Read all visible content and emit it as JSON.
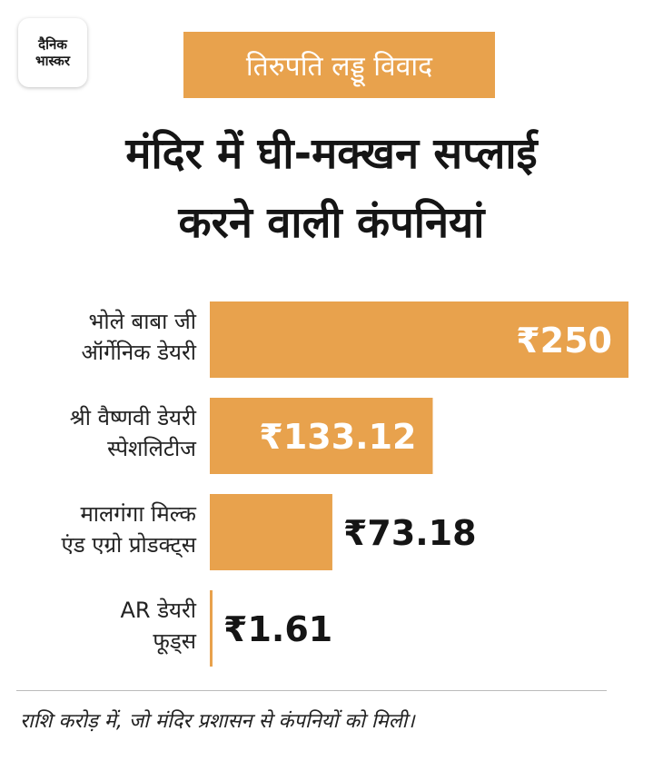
{
  "logo": {
    "line1": "दैनिक",
    "line2": "भास्कर"
  },
  "tag": "तिरुपति लड्डू विवाद",
  "title": {
    "line1": "मंदिर में घी-मक्खन सप्लाई",
    "line2": "करने वाली कंपनियां"
  },
  "colors": {
    "bar": "#E8A24D",
    "value_inside": "#ffffff",
    "value_outside": "#151515"
  },
  "chart_data": {
    "type": "bar",
    "orientation": "horizontal",
    "categories": [
      [
        "भोले बाबा जी",
        "ऑर्गेनिक डेयरी"
      ],
      [
        "श्री वैष्णवी डेयरी",
        "स्पेशलिटीज"
      ],
      [
        "मालगंगा मिल्क",
        "एंड एग्रो प्रोडक्ट्स"
      ],
      [
        "AR डेयरी",
        "फूड्स"
      ]
    ],
    "values": [
      250,
      133.12,
      73.18,
      1.61
    ],
    "value_labels": [
      "₹250",
      "₹133.12",
      "₹73.18",
      "₹1.61"
    ],
    "xlim": [
      0,
      250
    ],
    "grid": false,
    "legend": "none"
  },
  "footnote": "राशि करोड़ में, जो मंदिर प्रशासन से  कंपनियों को मिली।"
}
